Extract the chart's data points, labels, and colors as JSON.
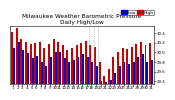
{
  "title": "Milwaukee Weather Barometric Pressure",
  "subtitle": "Daily High/Low",
  "background_color": "#ffffff",
  "bar_width": 0.42,
  "ylim": [
    29.35,
    30.55
  ],
  "yticks": [
    29.4,
    29.6,
    29.8,
    30.0,
    30.2,
    30.4
  ],
  "high_color": "#cc0000",
  "low_color": "#0000cc",
  "legend_high": "High",
  "legend_low": "Low",
  "days": [
    "1",
    "2",
    "3",
    "4",
    "5",
    "6",
    "7",
    "8",
    "9",
    "10",
    "11",
    "12",
    "13",
    "14",
    "15",
    "16",
    "17",
    "18",
    "19",
    "20",
    "21",
    "22",
    "23",
    "24",
    "25",
    "26",
    "27",
    "28",
    "29",
    "30",
    "31"
  ],
  "highs": [
    30.42,
    30.5,
    30.28,
    30.22,
    30.18,
    30.2,
    30.22,
    30.1,
    30.18,
    30.28,
    30.22,
    30.15,
    30.04,
    30.1,
    30.16,
    30.2,
    30.24,
    30.16,
    30.12,
    29.8,
    29.5,
    29.65,
    29.9,
    30.0,
    30.1,
    30.08,
    30.12,
    30.18,
    30.22,
    30.16,
    30.2
  ],
  "lows": [
    30.1,
    30.22,
    30.04,
    29.98,
    29.88,
    29.92,
    29.8,
    29.72,
    29.9,
    30.0,
    30.0,
    29.88,
    29.8,
    29.84,
    29.9,
    29.96,
    29.9,
    29.8,
    29.72,
    29.4,
    29.38,
    29.42,
    29.58,
    29.72,
    29.8,
    29.75,
    29.8,
    29.9,
    29.96,
    29.8,
    29.85
  ],
  "dotted_lines": [
    17,
    18,
    19
  ],
  "title_fontsize": 4.2,
  "tick_fontsize": 2.8,
  "legend_fontsize": 3.2,
  "ytick_labels": [
    "29.4",
    "29.6",
    "29.8",
    "30.0",
    "30.2",
    "30.4"
  ]
}
